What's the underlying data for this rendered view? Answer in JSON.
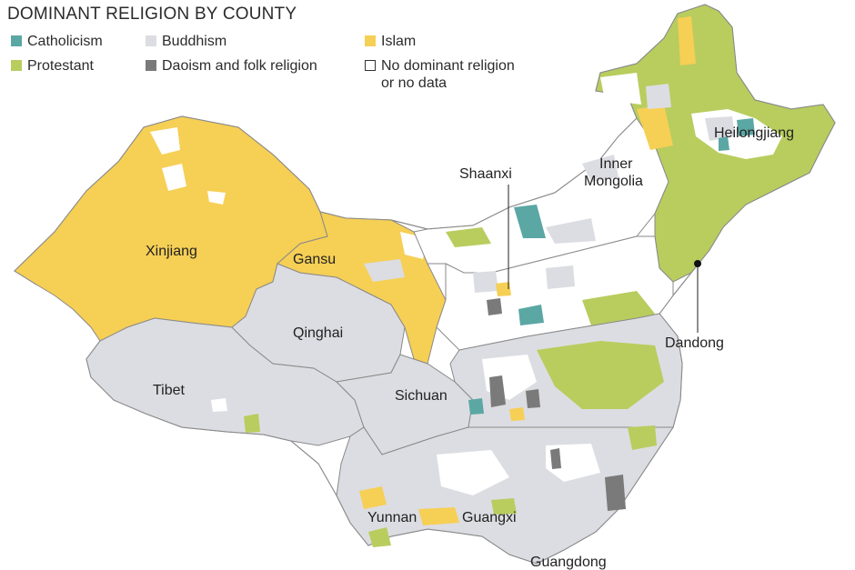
{
  "title": "DOMINANT RELIGION BY COUNTY",
  "colors": {
    "catholicism": "#5ba7a4",
    "buddhism": "#dcdde2",
    "islam": "#f6cf55",
    "protestant": "#b8cd5e",
    "daoism": "#7a7a7a",
    "none": "#ffffff",
    "border": "#8a8a8a"
  },
  "legend": [
    {
      "key": "catholicism",
      "label": "Catholicism"
    },
    {
      "key": "buddhism",
      "label": "Buddhism"
    },
    {
      "key": "islam",
      "label": "Islam"
    },
    {
      "key": "protestant",
      "label": "Protestant"
    },
    {
      "key": "daoism",
      "label": "Daoism and folk religion"
    },
    {
      "key": "none",
      "label_line1": "No dominant religion",
      "label_line2": "or no data"
    }
  ],
  "regions": {
    "heilongjiang": "Heilongjiang",
    "shaanxi": "Shaanxi",
    "inner_mongolia_line1": "Inner",
    "inner_mongolia_line2": "Mongolia",
    "xinjiang": "Xinjiang",
    "gansu": "Gansu",
    "qinghai": "Qinghai",
    "tibet": "Tibet",
    "sichuan": "Sichuan",
    "dandong": "Dandong",
    "yunnan": "Yunnan",
    "guangxi": "Guangxi",
    "guangdong": "Guangdong"
  }
}
